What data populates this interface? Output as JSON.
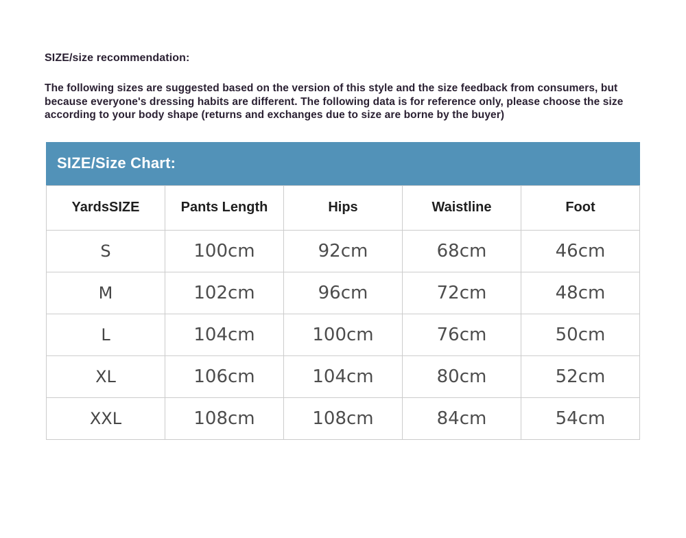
{
  "recommendation": {
    "heading": "SIZE/size recommendation:",
    "body": "The following sizes are suggested based on the version of this style and the size feedback from consumers, but because everyone's dressing habits are different. The following data is for reference only, please choose the size according to your body shape (returns and exchanges due to size are borne by the buyer)"
  },
  "size_chart": {
    "title": "SIZE/Size Chart:",
    "title_bar_color": "#5292b8",
    "title_text_color": "#ffffff",
    "border_color": "#cccccc",
    "columns": [
      "YardsSIZE",
      "Pants Length",
      "Hips",
      "Waistline",
      "Foot"
    ],
    "rows": [
      {
        "size": "S",
        "values": [
          "100cm",
          "92cm",
          "68cm",
          "46cm"
        ]
      },
      {
        "size": "M",
        "values": [
          "102cm",
          "96cm",
          "72cm",
          "48cm"
        ]
      },
      {
        "size": "L",
        "values": [
          "104cm",
          "100cm",
          "76cm",
          "50cm"
        ]
      },
      {
        "size": "XL",
        "values": [
          "106cm",
          "104cm",
          "80cm",
          "52cm"
        ]
      },
      {
        "size": "XXL",
        "values": [
          "108cm",
          "108cm",
          "84cm",
          "54cm"
        ]
      }
    ]
  },
  "chart_data": {
    "type": "table",
    "title": "SIZE/Size Chart:",
    "columns": [
      "YardsSIZE",
      "Pants Length",
      "Hips",
      "Waistline",
      "Foot"
    ],
    "rows": [
      [
        "S",
        "100cm",
        "92cm",
        "68cm",
        "46cm"
      ],
      [
        "M",
        "102cm",
        "96cm",
        "72cm",
        "48cm"
      ],
      [
        "L",
        "104cm",
        "100cm",
        "76cm",
        "50cm"
      ],
      [
        "XL",
        "106cm",
        "104cm",
        "80cm",
        "52cm"
      ],
      [
        "XXL",
        "108cm",
        "108cm",
        "84cm",
        "54cm"
      ]
    ]
  }
}
